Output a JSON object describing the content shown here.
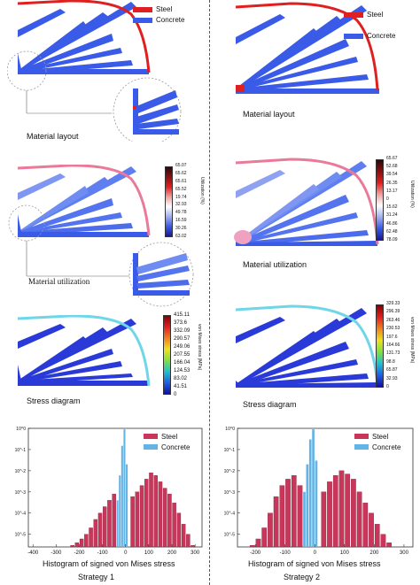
{
  "legend": {
    "steel": "Steel",
    "concrete": "Concrete"
  },
  "colors": {
    "steel": "#e02020",
    "concrete": "#3a5ae8",
    "hist_steel": "#c8375a",
    "hist_concrete": "#62b4e6"
  },
  "left": {
    "material_layout_label": "Material  layout",
    "material_utilization_label": "Material utilization",
    "stress_diagram_label": "Stress diagram",
    "utilization_title": "Utilization (%)",
    "utilization_ticks": [
      "65.07",
      "65.62",
      "65.61",
      "65.52",
      "19.74",
      "32.93",
      "49.78",
      "16.59",
      "30.26",
      "63.02"
    ],
    "stress_title": "von Mises stress (MPa)",
    "stress_ticks": [
      "415.11",
      "373.6",
      "332.09",
      "290.57",
      "249.06",
      "207.55",
      "166.04",
      "124.53",
      "83.02",
      "41.51",
      "0"
    ],
    "histogram_label": "Histogram of signed von Mises stress",
    "strategy": "Strategy 1"
  },
  "right": {
    "material_layout_label": "Material    layout",
    "material_utilization_label": "Material utilization",
    "stress_diagram_label": "Stress diagram",
    "utilization_title": "Utilization (%)",
    "utilization_ticks": [
      "65.67",
      "52.68",
      "39.54",
      "26.35",
      "13.17",
      "0",
      "15.62",
      "31.24",
      "46.86",
      "62.48",
      "78.09"
    ],
    "stress_title": "von Mises stress (MPa)",
    "stress_ticks": [
      "329.33",
      "296.39",
      "263.46",
      "230.53",
      "197.6",
      "164.66",
      "131.73",
      "98.8",
      "65.87",
      "32.93",
      "0"
    ],
    "histogram_label": "Histogram of signed von Mises stress",
    "strategy": "Strategy 2"
  },
  "chart_data": [
    {
      "type": "bar",
      "title": "",
      "xlabel": "Histogram of signed von Mises stress",
      "ylabel": "",
      "y_scale": "log",
      "y_ticks": [
        "10^0",
        "10^-1",
        "10^-2",
        "10^-3",
        "10^-4",
        "10^-5"
      ],
      "x_ticks": [
        "-400",
        "-300",
        "-200",
        "-100",
        "0",
        "100",
        "200",
        "300"
      ],
      "xlim": [
        -420,
        330
      ],
      "series": [
        {
          "name": "Steel",
          "color": "#c8375a",
          "x": [
            -410,
            -390,
            -370,
            -350,
            -330,
            -310,
            -290,
            -270,
            -250,
            -230,
            -210,
            -190,
            -170,
            -150,
            -130,
            -110,
            -90,
            -70,
            -50,
            30,
            50,
            70,
            90,
            110,
            130,
            150,
            170,
            190,
            210,
            230,
            250,
            270,
            290,
            310
          ],
          "values": [
            2e-06,
            2e-06,
            2e-06,
            2e-06,
            2e-06,
            2e-06,
            2e-06,
            2e-06,
            2e-06,
            3e-06,
            4e-06,
            6e-06,
            1e-05,
            2e-05,
            5e-05,
            0.0001,
            0.0002,
            0.0004,
            0.0008,
            0.0006,
            0.001,
            0.002,
            0.004,
            0.008,
            0.006,
            0.003,
            0.0015,
            0.0008,
            0.0003,
            0.0001,
            3e-05,
            1e-05,
            3e-06,
            2e-06
          ]
        },
        {
          "name": "Concrete",
          "color": "#62b4e6",
          "x": [
            -35,
            -25,
            -15,
            -5,
            5
          ],
          "values": [
            0.0004,
            0.006,
            0.15,
            0.9,
            0.02
          ]
        }
      ]
    },
    {
      "type": "bar",
      "title": "",
      "xlabel": "Histogram of signed von Mises stress",
      "ylabel": "",
      "y_scale": "log",
      "y_ticks": [
        "10^0",
        "10^-1",
        "10^-2",
        "10^-3",
        "10^-4",
        "10^-5"
      ],
      "x_ticks": [
        "-200",
        "-100",
        "0",
        "100",
        "200",
        "300"
      ],
      "xlim": [
        -260,
        330
      ],
      "series": [
        {
          "name": "Steel",
          "color": "#c8375a",
          "x": [
            -250,
            -230,
            -210,
            -190,
            -170,
            -150,
            -130,
            -110,
            -90,
            -70,
            -50,
            30,
            50,
            70,
            90,
            110,
            130,
            150,
            170,
            190,
            210,
            230,
            250,
            270,
            290,
            310
          ],
          "values": [
            2e-06,
            2e-06,
            3e-06,
            6e-06,
            2e-05,
            0.0001,
            0.0006,
            0.002,
            0.004,
            0.006,
            0.002,
            0.001,
            0.003,
            0.006,
            0.01,
            0.007,
            0.004,
            0.001,
            0.0003,
            0.0001,
            3e-05,
            1e-05,
            4e-06,
            2e-06,
            2e-06,
            2e-06
          ]
        },
        {
          "name": "Concrete",
          "color": "#62b4e6",
          "x": [
            -35,
            -25,
            -15,
            -5,
            5
          ],
          "values": [
            0.001,
            0.02,
            0.3,
            0.9,
            0.03
          ]
        }
      ]
    }
  ]
}
